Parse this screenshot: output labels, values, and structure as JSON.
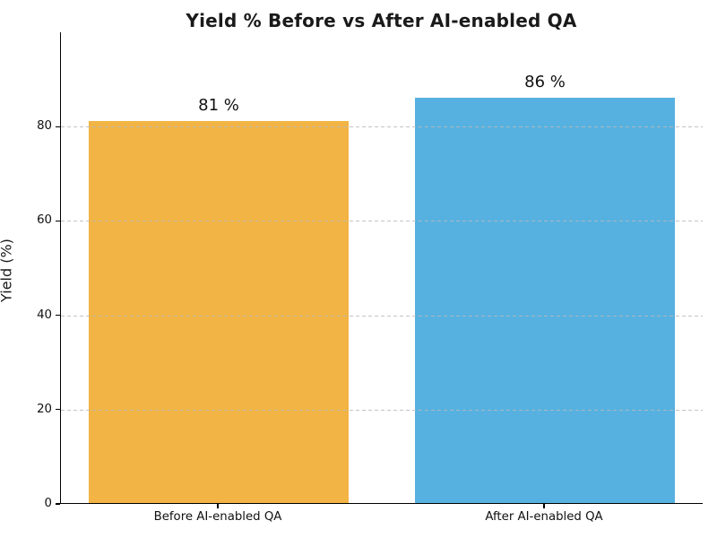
{
  "chart_data": {
    "type": "bar",
    "title": "Yield % Before vs After AI-enabled QA",
    "ylabel": "Yield (%)",
    "xlabel": "",
    "categories": [
      "Before AI-enabled QA",
      "After AI-enabled QA"
    ],
    "values": [
      81,
      86
    ],
    "value_labels": [
      "81 %",
      "86 %"
    ],
    "bar_colors": [
      "#F2B444",
      "#56B1E0"
    ],
    "yticks": [
      0,
      20,
      40,
      60,
      80
    ],
    "ylim": [
      0,
      100
    ],
    "grid": "horizontal-dashed",
    "grid_color": "#BDBDBD",
    "legend": "none"
  }
}
